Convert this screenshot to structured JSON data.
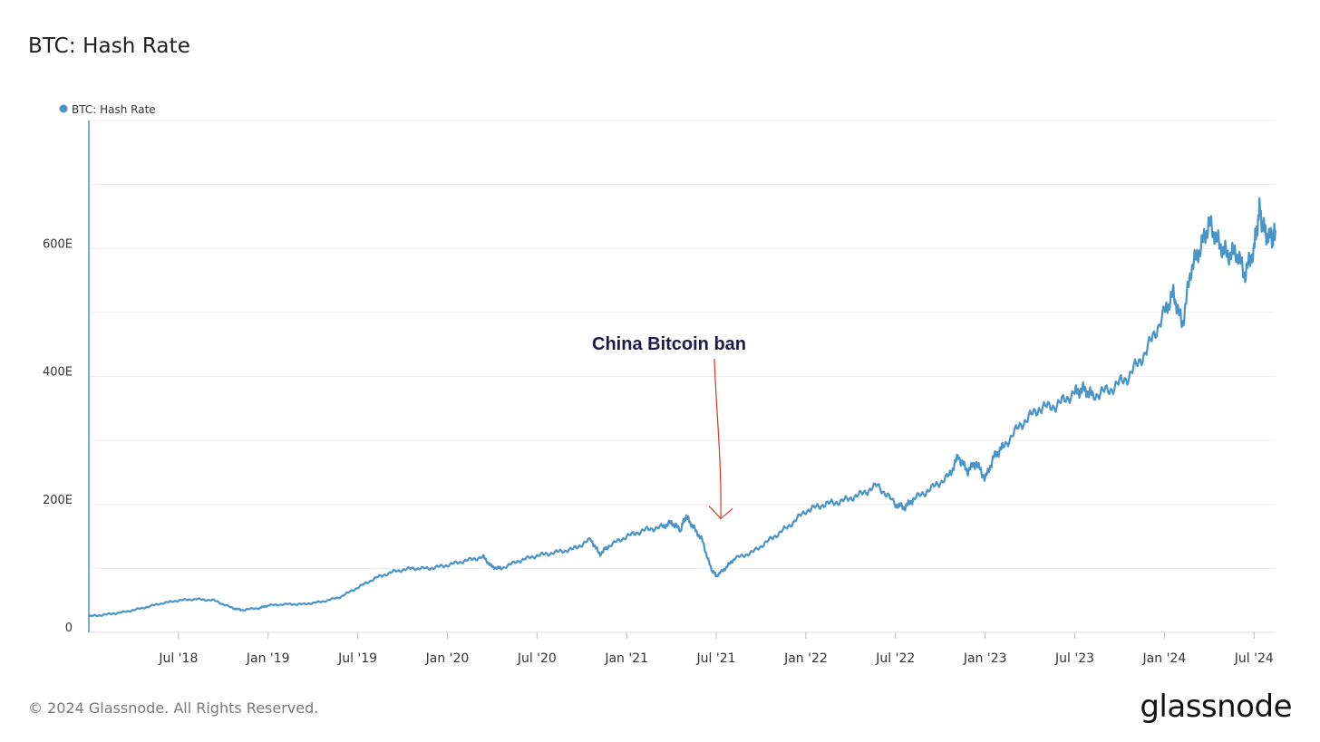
{
  "page": {
    "title": "BTC: Hash Rate",
    "copyright": "© 2024 Glassnode. All Rights Reserved.",
    "brand": "glassnode"
  },
  "colors": {
    "series": "#4a94c8",
    "annotation_text": "#1c1a4a",
    "annotation_arrow": "#d9381e",
    "grid": "#ececec",
    "tick_text": "#333333"
  },
  "chart_data": {
    "type": "line",
    "title": "BTC: Hash Rate",
    "xlabel": "",
    "ylabel": "",
    "x_range": [
      2018.0,
      2024.62
    ],
    "ylim": [
      0,
      800
    ],
    "grid": true,
    "legend": {
      "placement": "top-left",
      "entries": [
        "BTC: Hash Rate"
      ]
    },
    "y_ticks": [
      {
        "value": 0,
        "label": "0"
      },
      {
        "value": 200,
        "label": "200E"
      },
      {
        "value": 400,
        "label": "400E"
      },
      {
        "value": 600,
        "label": "600E"
      }
    ],
    "x_ticks": [
      {
        "value": 2018.5,
        "label": "Jul '18"
      },
      {
        "value": 2019.0,
        "label": "Jan '19"
      },
      {
        "value": 2019.5,
        "label": "Jul '19"
      },
      {
        "value": 2020.0,
        "label": "Jan '20"
      },
      {
        "value": 2020.5,
        "label": "Jul '20"
      },
      {
        "value": 2021.0,
        "label": "Jan '21"
      },
      {
        "value": 2021.5,
        "label": "Jul '21"
      },
      {
        "value": 2022.0,
        "label": "Jan '22"
      },
      {
        "value": 2022.5,
        "label": "Jul '22"
      },
      {
        "value": 2023.0,
        "label": "Jan '23"
      },
      {
        "value": 2023.5,
        "label": "Jul '23"
      },
      {
        "value": 2024.0,
        "label": "Jan '24"
      },
      {
        "value": 2024.5,
        "label": "Jul '24"
      }
    ],
    "annotations": [
      {
        "text": "China Bitcoin ban",
        "x": 2021.52,
        "y_text": 450,
        "y_point": 175
      }
    ],
    "series": [
      {
        "name": "BTC: Hash Rate",
        "unit": "EH/s",
        "x": [
          2018.0,
          2018.1,
          2018.2,
          2018.3,
          2018.4,
          2018.5,
          2018.6,
          2018.7,
          2018.8,
          2018.85,
          2018.95,
          2019.0,
          2019.1,
          2019.2,
          2019.3,
          2019.4,
          2019.5,
          2019.6,
          2019.7,
          2019.8,
          2019.9,
          2020.0,
          2020.1,
          2020.2,
          2020.25,
          2020.3,
          2020.4,
          2020.5,
          2020.6,
          2020.7,
          2020.8,
          2020.85,
          2020.9,
          2021.0,
          2021.1,
          2021.2,
          2021.25,
          2021.3,
          2021.33,
          2021.37,
          2021.42,
          2021.47,
          2021.5,
          2021.55,
          2021.6,
          2021.7,
          2021.8,
          2021.9,
          2022.0,
          2022.1,
          2022.2,
          2022.3,
          2022.4,
          2022.5,
          2022.55,
          2022.6,
          2022.7,
          2022.8,
          2022.85,
          2022.9,
          2022.95,
          2023.0,
          2023.05,
          2023.1,
          2023.2,
          2023.3,
          2023.4,
          2023.5,
          2023.55,
          2023.6,
          2023.7,
          2023.8,
          2023.9,
          2024.0,
          2024.05,
          2024.1,
          2024.15,
          2024.2,
          2024.25,
          2024.3,
          2024.35,
          2024.4,
          2024.45,
          2024.5,
          2024.53,
          2024.56,
          2024.6,
          2024.62
        ],
        "values": [
          25,
          28,
          32,
          38,
          45,
          50,
          52,
          50,
          38,
          35,
          38,
          42,
          44,
          44,
          48,
          55,
          70,
          85,
          95,
          100,
          100,
          105,
          112,
          118,
          102,
          100,
          112,
          120,
          125,
          130,
          145,
          122,
          135,
          150,
          160,
          165,
          172,
          160,
          182,
          165,
          145,
          100,
          88,
          100,
          115,
          125,
          145,
          165,
          190,
          200,
          205,
          215,
          230,
          200,
          195,
          208,
          225,
          245,
          275,
          252,
          265,
          240,
          275,
          290,
          325,
          350,
          355,
          375,
          380,
          370,
          380,
          400,
          440,
          500,
          530,
          480,
          570,
          600,
          640,
          610,
          590,
          595,
          560,
          600,
          660,
          625,
          615,
          625
        ]
      }
    ]
  }
}
